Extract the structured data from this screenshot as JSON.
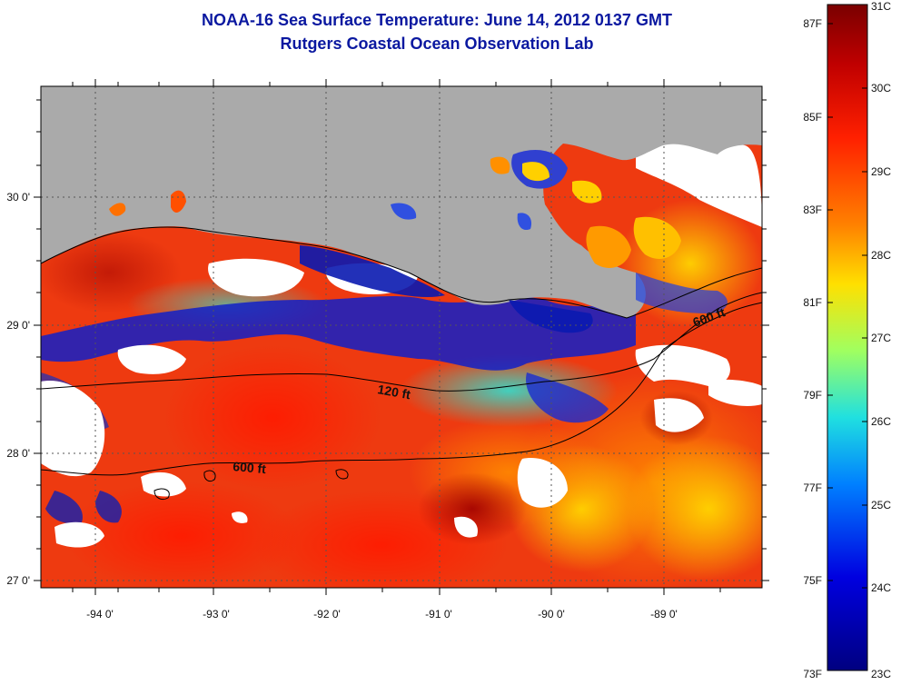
{
  "title_line1": "NOAA-16 Sea Surface Temperature:  June 14, 2012 0137 GMT",
  "title_line2": "Rutgers Coastal Ocean Observation Lab",
  "map": {
    "lon_range": [
      -94.5,
      -88.0
    ],
    "lat_range": [
      26.95,
      30.85
    ],
    "lon_ticks": [
      -94,
      -93,
      -92,
      -91,
      -90,
      -89
    ],
    "lon_tick_labels": [
      "-94 0'",
      "-93 0'",
      "-92 0'",
      "-91 0'",
      "-90 0'",
      "-89 0'"
    ],
    "lat_ticks": [
      30,
      29,
      28,
      27
    ],
    "lat_tick_labels": [
      "30 0'",
      "29 0'",
      "28 0'",
      "27 0'"
    ],
    "grid": "dotted",
    "contour_labels": [
      "120 ft",
      "600 ft",
      "600 ft"
    ],
    "land_color": "#aaaaaa",
    "cloud_color": "#ffffff"
  },
  "colorbar": {
    "celsius_labels": [
      "31C",
      "30C",
      "29C",
      "28C",
      "27C",
      "26C",
      "25C",
      "24C",
      "23C"
    ],
    "fahrenheit_labels": [
      "87F",
      "85F",
      "83F",
      "81F",
      "79F",
      "77F",
      "75F",
      "73F"
    ],
    "colors": [
      "#7a0000",
      "#c00000",
      "#ff2000",
      "#ff8000",
      "#ffe000",
      "#a0ff60",
      "#20e0e0",
      "#0080ff",
      "#0000e0",
      "#000080"
    ]
  }
}
